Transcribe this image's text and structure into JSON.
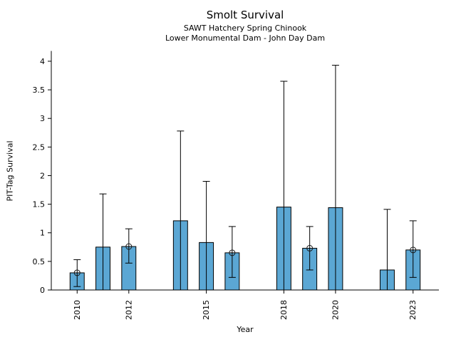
{
  "chart_data": {
    "type": "bar",
    "title": "Smolt Survival",
    "subtitle1": "SAWT Hatchery Spring Chinook",
    "subtitle2": "Lower Monumental Dam - John Day Dam",
    "xlabel": "Year",
    "ylabel": "PIT-Tag Survival",
    "xlim": [
      2009,
      2024
    ],
    "ylim": [
      0,
      4.18
    ],
    "yticks": [
      0,
      0.5,
      1,
      1.5,
      2,
      2.5,
      3,
      3.5,
      4
    ],
    "ytick_labels": [
      "0",
      "0.5",
      "1",
      "1.5",
      "2",
      "2.5",
      "3",
      "3.5",
      "4"
    ],
    "xticks": [
      2010,
      2012,
      2015,
      2018,
      2020,
      2023
    ],
    "xtick_labels": [
      "2010",
      "2012",
      "2015",
      "2018",
      "2020",
      "2023"
    ],
    "grid": false,
    "legend": "none",
    "bar_color": "#5BA7D4",
    "bar_edge_color": "#000000",
    "errorbar_color": "#000000",
    "marker_color": "#1a1a1a",
    "bar_width_years": 0.55,
    "series": [
      {
        "year": 2010,
        "value": 0.3,
        "ci_low": 0.06,
        "ci_high": 0.53,
        "marker": true
      },
      {
        "year": 2011,
        "value": 0.75,
        "ci_low": 0.0,
        "ci_high": 1.68,
        "marker": false
      },
      {
        "year": 2012,
        "value": 0.76,
        "ci_low": 0.47,
        "ci_high": 1.07,
        "marker": true
      },
      {
        "year": 2014,
        "value": 1.21,
        "ci_low": 0.0,
        "ci_high": 2.78,
        "marker": false
      },
      {
        "year": 2015,
        "value": 0.83,
        "ci_low": 0.0,
        "ci_high": 1.9,
        "marker": false
      },
      {
        "year": 2016,
        "value": 0.65,
        "ci_low": 0.22,
        "ci_high": 1.11,
        "marker": true
      },
      {
        "year": 2018,
        "value": 1.45,
        "ci_low": 0.0,
        "ci_high": 3.65,
        "marker": false
      },
      {
        "year": 2019,
        "value": 0.73,
        "ci_low": 0.35,
        "ci_high": 1.11,
        "marker": true
      },
      {
        "year": 2020,
        "value": 1.44,
        "ci_low": 0.0,
        "ci_high": 3.93,
        "marker": false
      },
      {
        "year": 2022,
        "value": 0.35,
        "ci_low": 0.0,
        "ci_high": 1.41,
        "marker": false
      },
      {
        "year": 2023,
        "value": 0.7,
        "ci_low": 0.22,
        "ci_high": 1.21,
        "marker": true
      }
    ]
  }
}
